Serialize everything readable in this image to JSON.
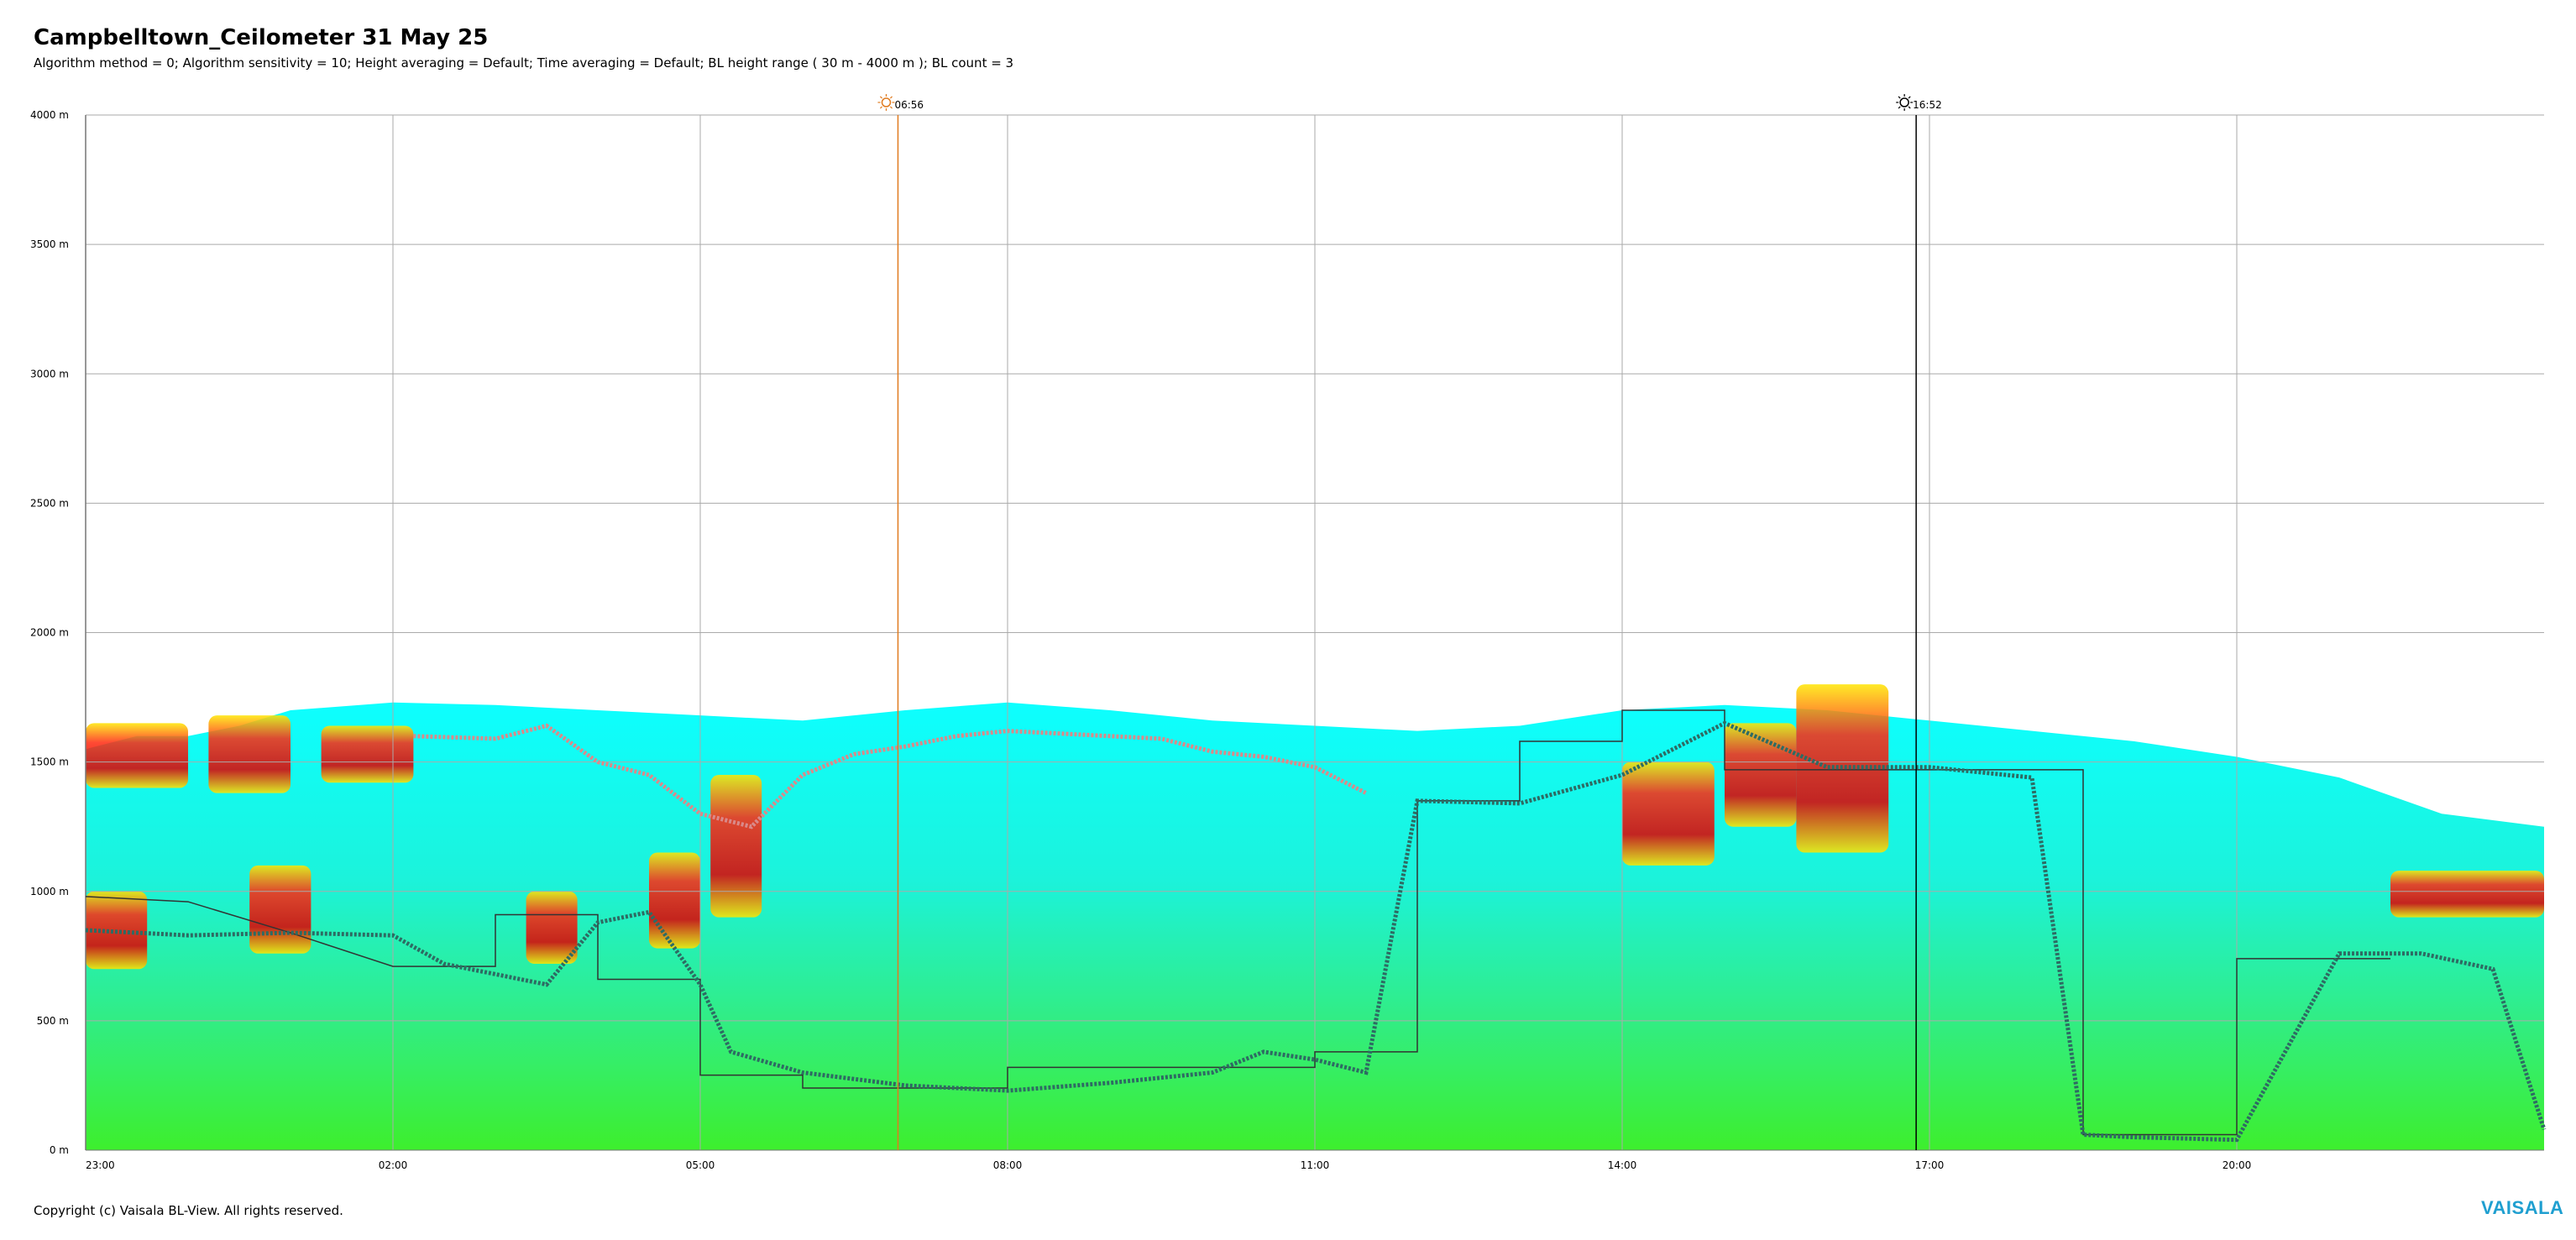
{
  "chart_data": {
    "type": "heatmap",
    "title": "Campbelltown_Ceilometer 31 May 25",
    "subtitle": "Algorithm method = 0; Algorithm sensitivity = 10; Height averaging = Default; Time averaging = Default; BL height range ( 30 m - 4000 m ); BL count = 3",
    "x_range_hours": [
      0,
      24
    ],
    "xticks": [
      {
        "label": "23:00",
        "h": 0
      },
      {
        "label": "02:00",
        "h": 3
      },
      {
        "label": "05:00",
        "h": 6
      },
      {
        "label": "08:00",
        "h": 9
      },
      {
        "label": "11:00",
        "h": 12
      },
      {
        "label": "14:00",
        "h": 15
      },
      {
        "label": "17:00",
        "h": 18
      },
      {
        "label": "20:00",
        "h": 21
      }
    ],
    "ylim": [
      0,
      4000
    ],
    "yticks": [
      {
        "label": "0 m",
        "v": 0
      },
      {
        "label": "500 m",
        "v": 500
      },
      {
        "label": "1000 m",
        "v": 1000
      },
      {
        "label": "1500 m",
        "v": 1500
      },
      {
        "label": "2000 m",
        "v": 2000
      },
      {
        "label": "2500 m",
        "v": 2500
      },
      {
        "label": "3000 m",
        "v": 3000
      },
      {
        "label": "3500 m",
        "v": 3500
      },
      {
        "label": "4000 m",
        "v": 4000
      }
    ],
    "sun_markers": [
      {
        "label": "06:56",
        "h": 7.93,
        "kind": "sunrise",
        "color": "#e07b1f"
      },
      {
        "label": "16:52",
        "h": 17.87,
        "kind": "sunset",
        "color": "#000000"
      }
    ],
    "aerosol_top_height": [
      [
        0,
        1550
      ],
      [
        0.5,
        1600
      ],
      [
        1,
        1600
      ],
      [
        1.5,
        1640
      ],
      [
        2,
        1700
      ],
      [
        3,
        1730
      ],
      [
        4,
        1720
      ],
      [
        5,
        1700
      ],
      [
        6,
        1680
      ],
      [
        7,
        1660
      ],
      [
        8,
        1700
      ],
      [
        9,
        1730
      ],
      [
        10,
        1700
      ],
      [
        11,
        1660
      ],
      [
        12,
        1640
      ],
      [
        13,
        1620
      ],
      [
        14,
        1640
      ],
      [
        15,
        1700
      ],
      [
        16,
        1720
      ],
      [
        17,
        1700
      ],
      [
        18,
        1660
      ],
      [
        19,
        1620
      ],
      [
        20,
        1580
      ],
      [
        21,
        1520
      ],
      [
        22,
        1440
      ],
      [
        23,
        1300
      ],
      [
        24,
        1250
      ]
    ],
    "gradient_layer_pink": [
      [
        3.2,
        1600
      ],
      [
        4,
        1590
      ],
      [
        4.5,
        1640
      ],
      [
        5,
        1500
      ],
      [
        5.5,
        1450
      ],
      [
        6,
        1300
      ],
      [
        6.5,
        1250
      ],
      [
        7,
        1450
      ],
      [
        7.5,
        1530
      ],
      [
        8,
        1560
      ],
      [
        8.5,
        1600
      ],
      [
        9,
        1620
      ],
      [
        10,
        1600
      ],
      [
        10.5,
        1590
      ],
      [
        11,
        1540
      ],
      [
        11.5,
        1520
      ],
      [
        12,
        1480
      ],
      [
        12.5,
        1380
      ]
    ],
    "bl_height_teal": [
      [
        0,
        850
      ],
      [
        1,
        830
      ],
      [
        2,
        840
      ],
      [
        3,
        830
      ],
      [
        3.5,
        720
      ],
      [
        4,
        680
      ],
      [
        4.5,
        640
      ],
      [
        5,
        880
      ],
      [
        5.5,
        920
      ],
      [
        6,
        640
      ],
      [
        6.3,
        380
      ],
      [
        7,
        300
      ],
      [
        8,
        250
      ],
      [
        9,
        230
      ],
      [
        10,
        260
      ],
      [
        11,
        300
      ],
      [
        11.5,
        380
      ],
      [
        12,
        350
      ],
      [
        12.5,
        300
      ],
      [
        13,
        1350
      ],
      [
        14,
        1340
      ],
      [
        15,
        1450
      ],
      [
        16,
        1650
      ],
      [
        17,
        1480
      ],
      [
        17.5,
        1480
      ],
      [
        18,
        1480
      ],
      [
        19,
        1440
      ],
      [
        19.5,
        60
      ],
      [
        20,
        50
      ],
      [
        21,
        40
      ],
      [
        22,
        760
      ],
      [
        22.8,
        760
      ],
      [
        23.5,
        700
      ],
      [
        24,
        80
      ]
    ],
    "bl_height_step": [
      [
        0,
        980
      ],
      [
        1,
        960
      ],
      [
        2,
        840
      ],
      [
        3,
        710
      ],
      [
        4,
        710
      ],
      [
        4,
        910
      ],
      [
        5,
        910
      ],
      [
        5,
        660
      ],
      [
        6,
        660
      ],
      [
        6,
        290
      ],
      [
        7,
        290
      ],
      [
        7,
        240
      ],
      [
        9,
        240
      ],
      [
        9,
        320
      ],
      [
        12,
        320
      ],
      [
        12,
        380
      ],
      [
        13,
        380
      ],
      [
        13,
        1350
      ],
      [
        14,
        1350
      ],
      [
        14,
        1580
      ],
      [
        15,
        1580
      ],
      [
        15,
        1700
      ],
      [
        16,
        1700
      ],
      [
        16,
        1470
      ],
      [
        17,
        1470
      ],
      [
        19.5,
        1470
      ],
      [
        19.5,
        60
      ],
      [
        21,
        60
      ],
      [
        21,
        740
      ],
      [
        22.5,
        740
      ]
    ],
    "high_backscatter_segments": [
      {
        "h0": 0.0,
        "h1": 1.0,
        "top": 1650,
        "bottom": 1400
      },
      {
        "h0": 1.2,
        "h1": 2.0,
        "top": 1680,
        "bottom": 1380
      },
      {
        "h0": 2.3,
        "h1": 3.2,
        "top": 1640,
        "bottom": 1420
      },
      {
        "h0": 0.0,
        "h1": 0.6,
        "top": 1000,
        "bottom": 700
      },
      {
        "h0": 1.6,
        "h1": 2.2,
        "top": 1100,
        "bottom": 760
      },
      {
        "h0": 4.3,
        "h1": 4.8,
        "top": 1000,
        "bottom": 720
      },
      {
        "h0": 5.5,
        "h1": 6.0,
        "top": 1150,
        "bottom": 780
      },
      {
        "h0": 6.1,
        "h1": 6.6,
        "top": 1450,
        "bottom": 900
      },
      {
        "h0": 15.0,
        "h1": 15.9,
        "top": 1500,
        "bottom": 1100
      },
      {
        "h0": 16.0,
        "h1": 16.7,
        "top": 1650,
        "bottom": 1250
      },
      {
        "h0": 16.7,
        "h1": 17.6,
        "top": 1800,
        "bottom": 1150
      },
      {
        "h0": 22.5,
        "h1": 24.0,
        "top": 1080,
        "bottom": 900
      }
    ]
  },
  "footer": {
    "copyright": "Copyright (c) Vaisala BL-View. All rights reserved.",
    "logo": "VAISALA"
  },
  "colors": {
    "grid": "#aaaaaa",
    "low": "#33ee22",
    "mid": "#22e8b0",
    "high": "#00ffff",
    "peak": "#ff1a1a",
    "bl_teal": "#2e6b63",
    "gradient_pink": "#d98a8a"
  }
}
